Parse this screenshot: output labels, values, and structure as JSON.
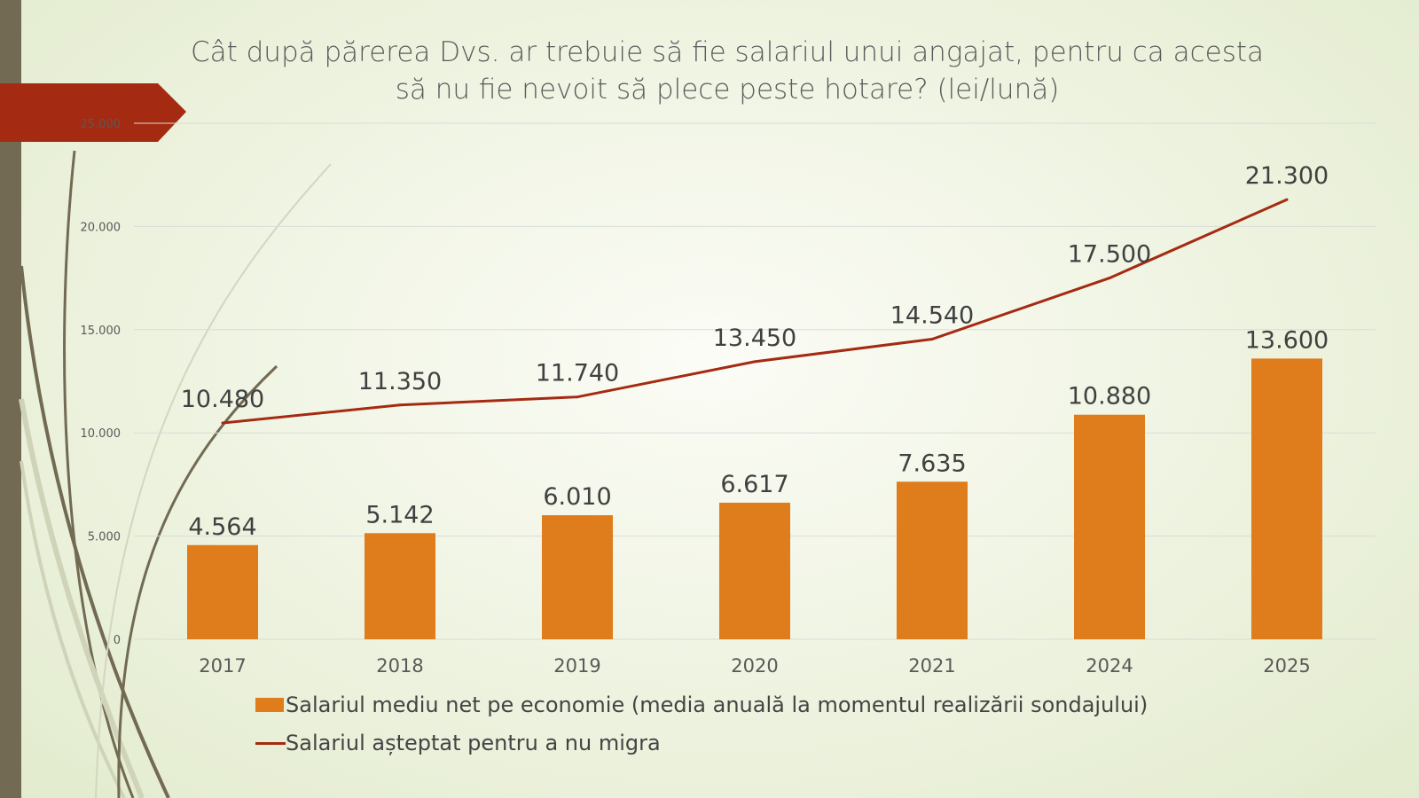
{
  "chart_data": {
    "type": "bar+line",
    "title": "Cât după părerea Dvs. ar trebuie să fie salariul unui angajat, pentru ca acesta să nu fie nevoit să plece peste hotare? (lei/lună)",
    "categories": [
      "2017",
      "2018",
      "2019",
      "2020",
      "2021",
      "2024",
      "2025"
    ],
    "series": [
      {
        "name": "Salariul mediu net pe economie (media anuală la momentul realizării sondajului)",
        "type": "bar",
        "color": "#df7c1b",
        "values": [
          4564,
          5142,
          6010,
          6617,
          7635,
          10880,
          13600
        ],
        "labels": [
          "4.564",
          "5.142",
          "6.010",
          "6.617",
          "7.635",
          "10.880",
          "13.600"
        ]
      },
      {
        "name": "Salariul așteptat pentru a nu migra",
        "type": "line",
        "color": "#a52a12",
        "values": [
          10480,
          11350,
          11740,
          13450,
          14540,
          17500,
          21300
        ],
        "labels": [
          "10.480",
          "11.350",
          "11.740",
          "13.450",
          "14.540",
          "17.500",
          "21.300"
        ]
      }
    ],
    "ylim": [
      0,
      25000
    ],
    "yticks": [
      0,
      5000,
      10000,
      15000,
      20000,
      25000
    ],
    "ytick_labels": [
      "0",
      "5.000",
      "10.000",
      "15.000",
      "20.000",
      "25.000"
    ],
    "grid": true,
    "legend": "bottom"
  }
}
